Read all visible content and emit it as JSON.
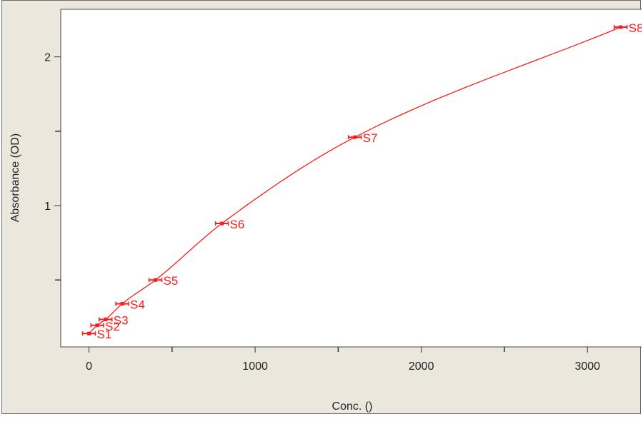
{
  "chart_data": {
    "type": "scatter",
    "title": "",
    "xlabel": "Conc. ()",
    "ylabel": "Absorbance (OD)",
    "xlim": [
      -170,
      3330
    ],
    "ylim": [
      0.05,
      2.32
    ],
    "x_ticks_major": [
      0,
      1000,
      2000,
      3000
    ],
    "x_ticks_minor": [
      500,
      1500,
      2500
    ],
    "y_ticks_major": [
      1,
      2
    ],
    "y_ticks_minor": [
      0.5,
      1.5
    ],
    "grid": false,
    "series": [
      {
        "name": "",
        "color": "#ff1a1a",
        "points": [
          {
            "label": "S1",
            "x": 0,
            "y": 0.14
          },
          {
            "label": "S2",
            "x": 50,
            "y": 0.195
          },
          {
            "label": "S3",
            "x": 100,
            "y": 0.235
          },
          {
            "label": "S4",
            "x": 200,
            "y": 0.34
          },
          {
            "label": "S5",
            "x": 400,
            "y": 0.5
          },
          {
            "label": "S6",
            "x": 800,
            "y": 0.88
          },
          {
            "label": "S7",
            "x": 1600,
            "y": 1.46
          },
          {
            "label": "S8",
            "x": 3200,
            "y": 2.2
          }
        ],
        "fit_curve": {
          "type": "4PL",
          "shown": true
        }
      }
    ]
  }
}
